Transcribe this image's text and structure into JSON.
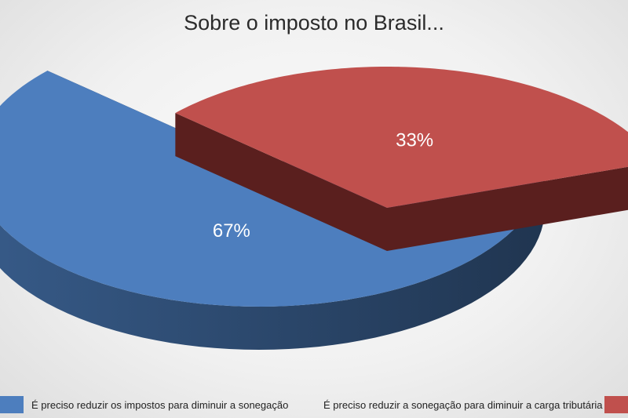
{
  "chart_data": {
    "type": "pie",
    "title": "Sobre o imposto no Brasil...",
    "categories": [
      "É preciso reduzir os impostos para diminuir a sonegação",
      "É preciso reduzir a sonegação para diminuir a carga tributária"
    ],
    "values": [
      67,
      33
    ],
    "value_labels": [
      "67%",
      "33%"
    ],
    "colors": [
      "#4d7ebe",
      "#c0504d"
    ],
    "legend_position": "bottom",
    "style": "3d-exploded"
  }
}
